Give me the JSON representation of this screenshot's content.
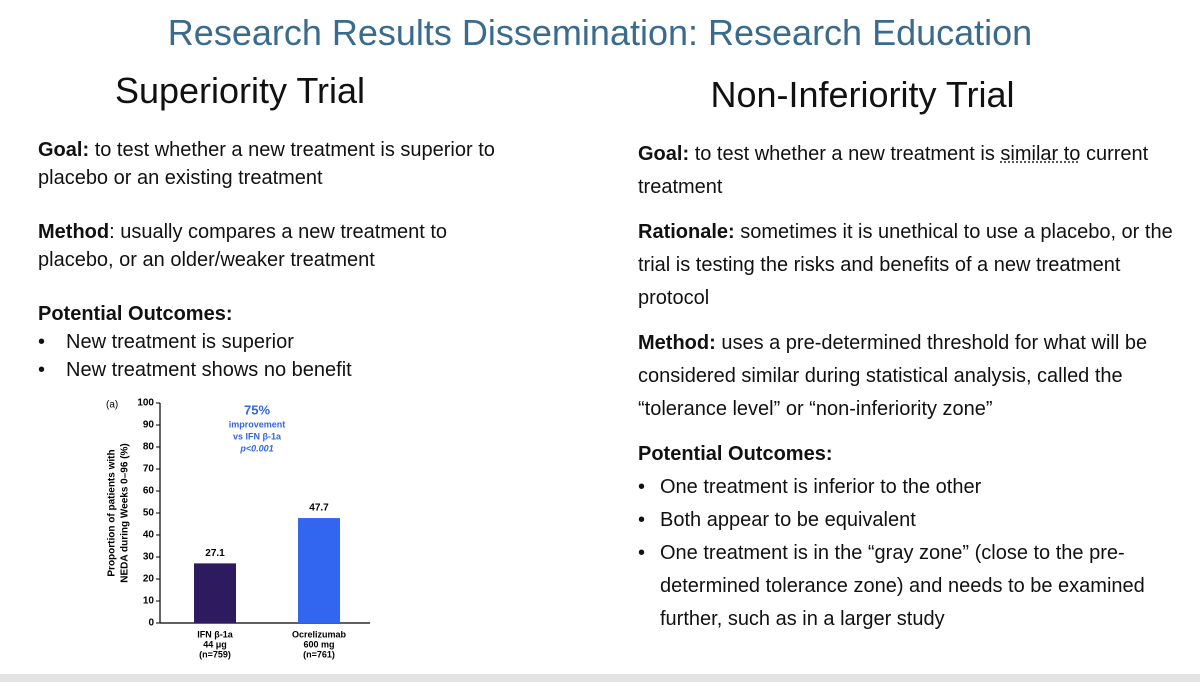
{
  "title": "Research Results Dissemination: Research Education",
  "superiority": {
    "heading": "Superiority Trial",
    "goal": {
      "label": "Goal:",
      "text": "to test whether a new treatment is superior to placebo or an existing treatment"
    },
    "method": {
      "label": "Method",
      "text": ": usually compares a new treatment to placebo, or an older/weaker treatment"
    },
    "outcomes": {
      "label": "Potential Outcomes:",
      "items": [
        "New treatment is superior",
        "New treatment shows no benefit"
      ]
    }
  },
  "non_inferiority": {
    "heading": "Non-Inferiority Trial",
    "goal": {
      "label": "Goal:",
      "text": "to test whether a new treatment is",
      "underlined": "similar to",
      "text_after": "current treatment"
    },
    "rationale": {
      "label": "Rationale:",
      "text": "sometimes it is unethical to use a placebo, or the trial is testing the risks and benefits of a new treatment protocol"
    },
    "method": {
      "label": "Method:",
      "text": "uses a pre-determined threshold for what will be considered similar during statistical analysis, called the “tolerance level” or “non-inferiority zone”"
    },
    "outcomes": {
      "label": "Potential Outcomes:",
      "items": [
        "One treatment is inferior to the other",
        "Both appear to be equivalent",
        "One treatment is in the “gray zone” (close to the pre-determined tolerance zone) and needs to be examined further, such as in a larger study"
      ]
    }
  },
  "chart_data": {
    "type": "bar",
    "panel_label": "(a)",
    "y_label": [
      "Proportion of patients with",
      "NEDA during Weeks 0–96 (%)"
    ],
    "categories": [
      [
        "IFN β-1a",
        "44 μg",
        "(n=759)"
      ],
      [
        "Ocrelizumab",
        "600 mg",
        "(n=761)"
      ]
    ],
    "values": [
      27.1,
      47.7
    ],
    "colors": [
      "#2e1a5e",
      "#3366f0"
    ],
    "ylim": [
      0,
      100
    ],
    "yticks": [
      0,
      10,
      20,
      30,
      40,
      50,
      60,
      70,
      80,
      90,
      100
    ],
    "annotation": {
      "headline": "75%",
      "lines": [
        "improvement",
        "vs IFN β-1a",
        "p<0.001"
      ]
    }
  }
}
